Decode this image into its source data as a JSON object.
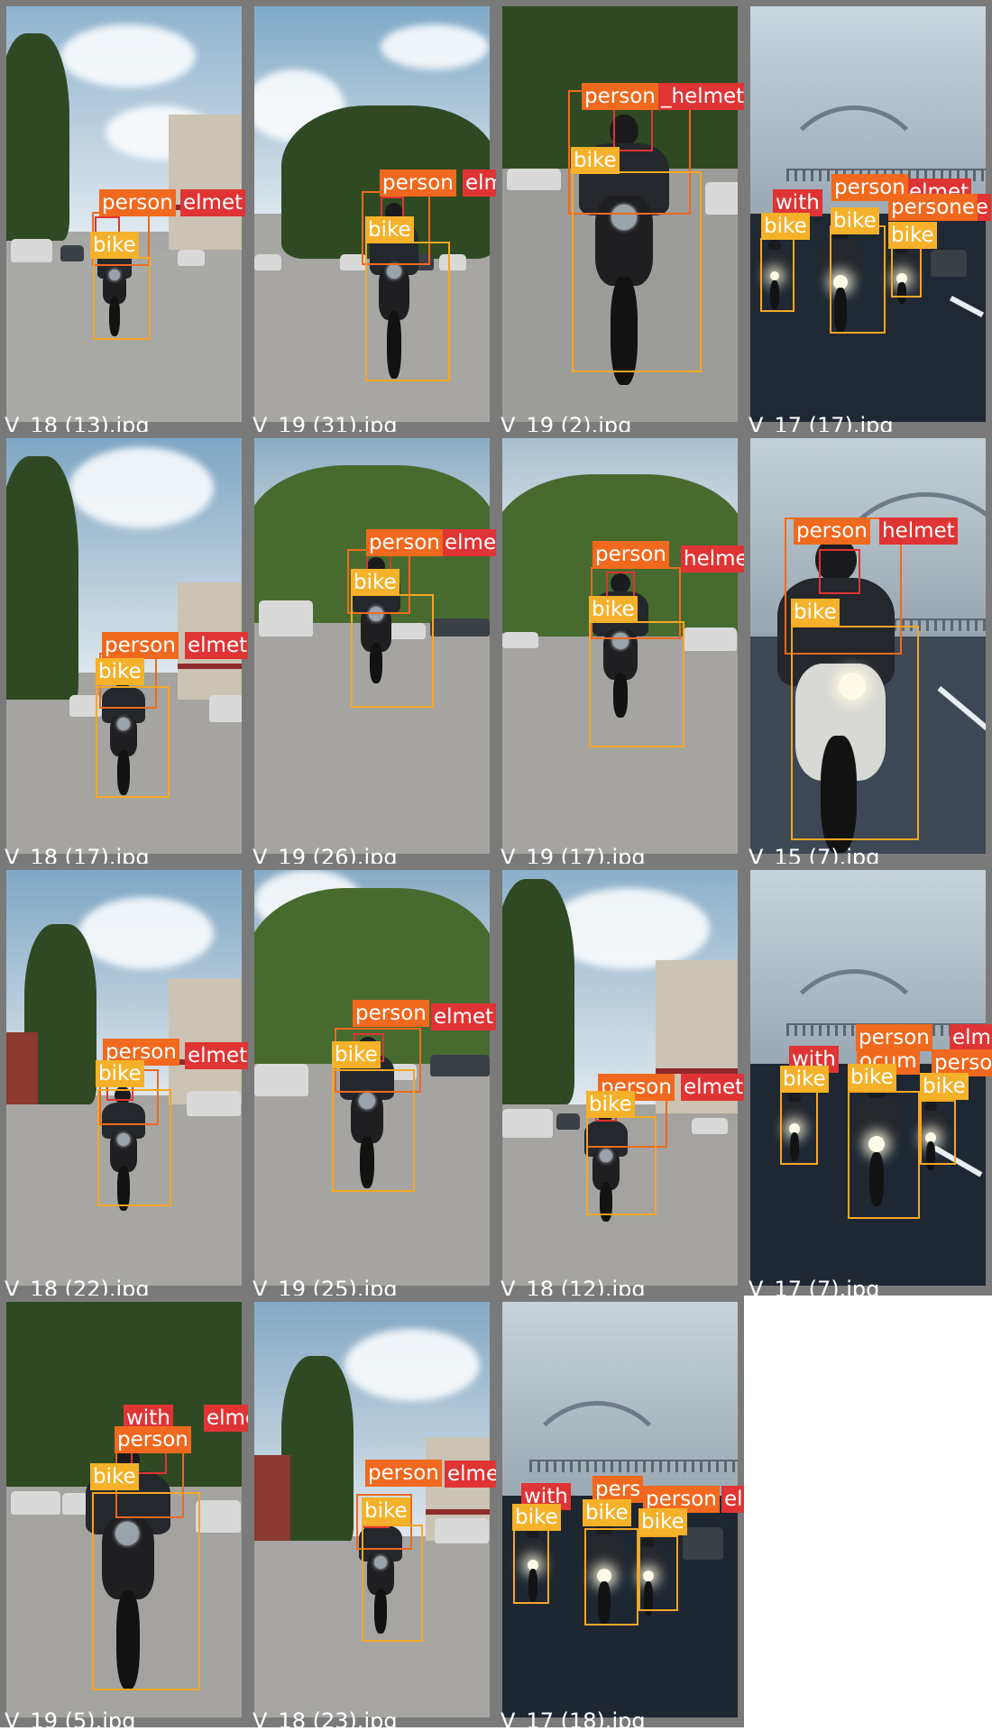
{
  "grid": {
    "tiles": [
      {
        "caption": "V_18 (13).jpg",
        "labels": {
          "person": "person",
          "helmet": "elmet",
          "bike": "bike"
        }
      },
      {
        "caption": "V_19 (31).jpg",
        "labels": {
          "person": "person",
          "helmet": "elmet",
          "bike": "bike"
        }
      },
      {
        "caption": "V_19 (2).jpg",
        "labels": {
          "person": "person",
          "helmet": "_helmet",
          "bike": "bike"
        }
      },
      {
        "caption": "V_17 (17).jpg",
        "labels": {
          "with": "with",
          "person": "person",
          "helmet": "elmet",
          "person2": "persone",
          "helmet2": "lme",
          "bike": "bike",
          "bike2": "bike",
          "bike3": "bike"
        }
      },
      {
        "caption": "V_18 (17).jpg",
        "labels": {
          "person": "person",
          "helmet": "elmet",
          "bike": "bike"
        }
      },
      {
        "caption": "V_19 (26).jpg",
        "labels": {
          "person": "person",
          "helmet": "elmet",
          "bike": "bike"
        }
      },
      {
        "caption": "V_19 (17).jpg",
        "labels": {
          "person": "person",
          "helmet": "helmet",
          "bike": "bike"
        }
      },
      {
        "caption": "V_15 (7).jpg",
        "labels": {
          "person": "person",
          "helmet": "helmet",
          "bike": "bike"
        }
      },
      {
        "caption": "V_18 (22).jpg",
        "labels": {
          "person": "person",
          "helmet": "elmet",
          "bike": "bike"
        }
      },
      {
        "caption": "V_19 (25).jpg",
        "labels": {
          "person": "person",
          "helmet": "elmet",
          "bike": "bike"
        }
      },
      {
        "caption": "V_18 (12).jpg",
        "labels": {
          "person": "person",
          "helmet": "elmet",
          "bike": "bike"
        }
      },
      {
        "caption": "V_17 (7).jpg",
        "labels": {
          "with": "with",
          "person": "person",
          "helmet": "elme",
          "person2": "perso",
          "person3": "ocum",
          "bike": "bike",
          "bike2": "bike",
          "bike3": "bike"
        }
      },
      {
        "caption": "V_19 (5).jpg",
        "labels": {
          "with": "with",
          "person": "person",
          "helmet": "elmet",
          "bike": "bike"
        }
      },
      {
        "caption": "V_18 (23).jpg",
        "labels": {
          "person": "person",
          "helmet": "elmet",
          "bike": "bike"
        }
      },
      {
        "caption": "V_17 (18).jpg",
        "labels": {
          "with": "with",
          "person": "pers",
          "person2": "person",
          "helmet": "elmet",
          "bike": "bike",
          "bike2": "bike",
          "bike3": "bike"
        }
      }
    ]
  },
  "colors": {
    "person": "#f0691e",
    "helmet": "#e03434",
    "bike": "#f5a623",
    "tile_border": "#7a7a7a"
  }
}
